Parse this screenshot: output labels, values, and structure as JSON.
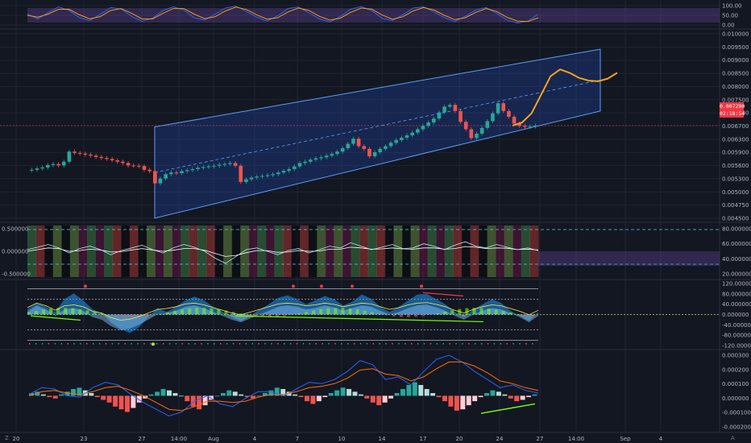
{
  "colors": {
    "background": "#131722",
    "grid": "#1f2431",
    "separator": "#2a2e39",
    "candle_up": "#26a69a",
    "candle_down": "#ef5350",
    "channel_fill": "#2962ff",
    "forecast": "#f7a21b",
    "stoch_k": "#2962ff",
    "stoch_d": "#ff9800",
    "stoch_band": "#7e57c2",
    "macd_line": "#2962ff",
    "signal_line": "#ff6d00",
    "divergence": "#76ff03"
  },
  "price_badge": {
    "price": "0.007290",
    "countdown": "02:18:54"
  },
  "x_axis": {
    "labels": [
      "20",
      "23",
      "27",
      "14:00",
      "Aug",
      "4",
      "7",
      "10",
      "14",
      "17",
      "20",
      "24",
      "27",
      "14:00",
      "Sep",
      "4"
    ]
  },
  "corner_buttons": {
    "left": "Z",
    "right": "A"
  },
  "chart_data": [
    {
      "type": "line",
      "panel": "stochastic",
      "y_ticks": [
        "100.00",
        "50.00",
        "0.00"
      ],
      "ylim": [
        0,
        100
      ],
      "series": [
        {
          "values": [
            55,
            35,
            62,
            85,
            70,
            40,
            28,
            55,
            82,
            76,
            45,
            25,
            38,
            70,
            85,
            72,
            40,
            30,
            55,
            80,
            88,
            66,
            42,
            26,
            48,
            78,
            84,
            60,
            35,
            22,
            45,
            75,
            86,
            70,
            38,
            28,
            52,
            80,
            85,
            64,
            40,
            24,
            46,
            72,
            82,
            58,
            30,
            18,
            26,
            55
          ]
        },
        {
          "values": [
            50,
            42,
            55,
            75,
            75,
            52,
            35,
            45,
            70,
            78,
            58,
            35,
            35,
            58,
            78,
            78,
            55,
            36,
            44,
            68,
            84,
            74,
            52,
            34,
            40,
            64,
            80,
            70,
            46,
            30,
            38,
            62,
            80,
            76,
            52,
            34,
            44,
            68,
            82,
            72,
            50,
            32,
            40,
            62,
            78,
            66,
            42,
            26,
            24,
            40
          ]
        }
      ]
    },
    {
      "type": "candlestick",
      "panel": "price",
      "y_ticks": [
        "0.010000",
        "0.009500",
        "0.009000",
        "0.008500",
        "0.008000",
        "0.007500",
        "0.007000",
        "0.006700",
        "0.006300",
        "0.005900",
        "0.005600",
        "0.005300",
        "0.005000",
        "0.004750",
        "0.004500"
      ],
      "ylim": [
        0.00445,
        0.0101
      ],
      "closes": [
        0.00598,
        0.00602,
        0.00605,
        0.00612,
        0.00615,
        0.00611,
        0.00622,
        0.00652,
        0.00648,
        0.00646,
        0.00643,
        0.0064,
        0.00636,
        0.00633,
        0.0063,
        0.00626,
        0.00622,
        0.00618,
        0.00611,
        0.0061,
        0.00609,
        0.00598,
        0.00594,
        0.00558,
        0.00572,
        0.00585,
        0.0059,
        0.00588,
        0.00594,
        0.00597,
        0.006,
        0.00604,
        0.00606,
        0.00608,
        0.0061,
        0.00613,
        0.00615,
        0.00618,
        0.0061,
        0.00562,
        0.0057,
        0.00575,
        0.00578,
        0.0058,
        0.00582,
        0.00585,
        0.0059,
        0.00595,
        0.006,
        0.00608,
        0.00618,
        0.00622,
        0.00628,
        0.00632,
        0.00635,
        0.0064,
        0.00645,
        0.00652,
        0.00662,
        0.00675,
        0.0069,
        0.00668,
        0.0066,
        0.00638,
        0.0065,
        0.0066,
        0.00668,
        0.00678,
        0.00686,
        0.00693,
        0.007,
        0.00708,
        0.00718,
        0.00728,
        0.00738,
        0.0075,
        0.00768,
        0.00785,
        0.0079,
        0.00772,
        0.0074,
        0.00718,
        0.00692,
        0.00705,
        0.00722,
        0.00742,
        0.00765,
        0.00795,
        0.00772,
        0.00755,
        0.00735,
        0.00728,
        0.00725,
        0.00726,
        0.00729
      ],
      "forecast": [
        0.00729,
        0.00738,
        0.00765,
        0.0082,
        0.00875,
        0.00895,
        0.00885,
        0.0087,
        0.00862,
        0.0086,
        0.00868,
        0.00885
      ],
      "current": 0.00729
    },
    {
      "type": "line",
      "panel": "oscillator",
      "y_ticks": [
        "0.500000",
        "0.000000",
        "-0.500000",
        "80.000000",
        "60.000000",
        "40.000000",
        "20.000000"
      ],
      "ylim": [
        -0.8,
        0.8
      ],
      "series": [
        {
          "values": [
            0.05,
            0.12,
            0.2,
            0.1,
            -0.05,
            0.08,
            0.15,
            0.05,
            -0.1,
            0.02,
            0.1,
            0.18,
            0.05,
            -0.05,
            0.1,
            0.2,
            0.12,
            0.0,
            -0.2,
            -0.35,
            -0.15,
            0.05,
            0.1,
            0.0,
            -0.1,
            0.02,
            0.08,
            -0.05,
            0.05,
            0.15,
            0.1,
            0.25,
            0.15,
            0.05,
            0.12,
            0.2,
            0.08,
            0.1,
            0.22,
            0.15,
            0.05,
            0.18,
            0.28,
            0.15,
            0.1,
            0.2,
            0.12,
            0.05,
            0.1,
            0.02
          ]
        },
        {
          "values": [
            0.0,
            0.05,
            0.1,
            0.08,
            0.0,
            0.02,
            0.06,
            0.04,
            -0.02,
            -0.01,
            0.04,
            0.08,
            0.04,
            0.0,
            0.03,
            0.08,
            0.08,
            0.03,
            -0.06,
            -0.15,
            -0.12,
            -0.04,
            0.02,
            0.02,
            -0.03,
            -0.02,
            0.02,
            0.0,
            0.01,
            0.06,
            0.06,
            0.12,
            0.1,
            0.06,
            0.07,
            0.1,
            0.07,
            0.06,
            0.1,
            0.1,
            0.06,
            0.08,
            0.14,
            0.12,
            0.08,
            0.1,
            0.09,
            0.05,
            0.06,
            0.04
          ]
        }
      ]
    },
    {
      "type": "area",
      "panel": "wave",
      "y_ticks": [
        "120.000000",
        "80.000000",
        "40.000000",
        "0.000000",
        "-40.000000",
        "-80.000000",
        "-120.000000"
      ],
      "ylim": [
        -130,
        130
      ],
      "series": [
        {
          "values": [
            20,
            45,
            30,
            10,
            60,
            82,
            55,
            20,
            5,
            -30,
            -55,
            -72,
            -50,
            -10,
            25,
            10,
            30,
            55,
            70,
            55,
            30,
            10,
            -10,
            -25,
            -5,
            20,
            40,
            65,
            75,
            60,
            40,
            55,
            72,
            60,
            35,
            50,
            78,
            62,
            30,
            10,
            30,
            55,
            78,
            80,
            60,
            40,
            10,
            -10,
            20,
            40,
            60,
            45,
            15,
            -5,
            -25,
            10
          ]
        },
        {
          "values": [
            10,
            35,
            20,
            -5,
            20,
            25,
            15,
            -10,
            -20,
            -45,
            -60,
            -55,
            -40,
            -20,
            0,
            5,
            15,
            30,
            35,
            25,
            10,
            -5,
            -20,
            -30,
            -15,
            0,
            15,
            30,
            35,
            30,
            20,
            25,
            35,
            28,
            15,
            25,
            35,
            30,
            15,
            0,
            10,
            25,
            35,
            38,
            28,
            15,
            -5,
            -20,
            0,
            15,
            25,
            20,
            5,
            -10,
            -30,
            -5
          ]
        }
      ]
    },
    {
      "type": "bar",
      "panel": "macd",
      "y_ticks": [
        "0.000300",
        "0.000200",
        "0.000100",
        "0.000000",
        "-0.000100",
        "-0.000200"
      ],
      "ylim": [
        -0.00026,
        0.00033
      ],
      "histogram": [
        2e-05,
        3e-05,
        1e-05,
        -1e-05,
        -2e-05,
        1e-05,
        3e-05,
        5e-05,
        6e-05,
        4e-05,
        2e-05,
        -1e-05,
        -3e-05,
        -5e-05,
        -8e-05,
        -0.0001,
        -0.00012,
        -9e-05,
        -5e-05,
        -2e-05,
        1e-05,
        3e-05,
        5e-05,
        4e-05,
        2e-05,
        0.0,
        -4e-05,
        -8e-05,
        -0.0001,
        -7e-05,
        -3e-05,
        0.0,
        2e-05,
        4e-05,
        3e-05,
        1e-05,
        -1e-05,
        -2e-05,
        0.0,
        2e-05,
        4e-05,
        6e-05,
        5e-05,
        3e-05,
        1e-05,
        -1e-05,
        -4e-05,
        -6e-05,
        -4e-05,
        -1e-05,
        2e-05,
        4e-05,
        6e-05,
        5e-05,
        3e-05,
        1e-05,
        -2e-05,
        -5e-05,
        -7e-05,
        -5e-05,
        -2e-05,
        2e-05,
        5e-05,
        8e-05,
        0.0001,
        8e-05,
        5e-05,
        2e-05,
        -1e-05,
        -4e-05,
        -8e-05,
        -0.00011,
        -0.0001,
        -7e-05,
        -4e-05,
        -1e-05,
        2e-05,
        4e-05,
        3e-05,
        1e-05,
        -2e-05,
        -4e-05,
        -3e-05,
        -1e-05,
        1e-05
      ],
      "macd": [
        1e-05,
        6e-05,
        5e-05,
        0.0,
        -1e-05,
        6e-05,
        0.0001,
        8e-05,
        1e-05,
        -5e-05,
        -0.0001,
        -0.00015,
        -0.00012,
        -4e-05,
        0.0,
        -6e-05,
        -8e-05,
        -2e-05,
        3e-05,
        3e-05,
        0.0,
        5e-05,
        0.0001,
        9e-05,
        0.00012,
        0.00018,
        0.00026,
        0.00023,
        0.00012,
        0.00014,
        8e-05,
        0.00018,
        0.00027,
        0.0003,
        0.00025,
        0.00018,
        0.00012,
        6e-05,
        8e-05,
        4e-05,
        2e-05
      ],
      "signal": [
        0.0,
        3e-05,
        4e-05,
        2e-05,
        1e-05,
        3e-05,
        6e-05,
        7e-05,
        4e-05,
        0.0,
        -5e-05,
        -0.0001,
        -0.00011,
        -8e-05,
        -4e-05,
        -4e-05,
        -5e-05,
        -4e-05,
        -1e-05,
        1e-05,
        1e-05,
        3e-05,
        6e-05,
        7e-05,
        9e-05,
        0.00013,
        0.00019,
        0.0002,
        0.00016,
        0.00015,
        0.00011,
        0.00014,
        0.0002,
        0.00025,
        0.00025,
        0.00022,
        0.00017,
        0.00011,
        9e-05,
        6e-05,
        4e-05
      ]
    }
  ]
}
